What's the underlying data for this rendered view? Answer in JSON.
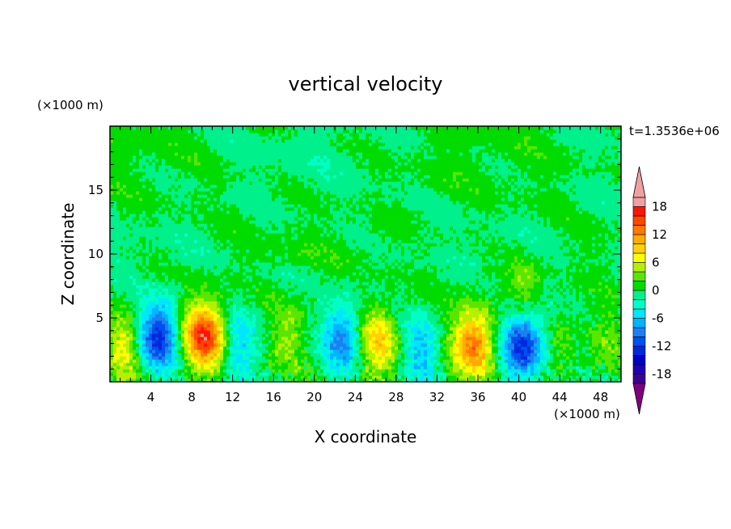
{
  "chart_data": {
    "type": "heatmap",
    "title": "vertical velocity",
    "xlabel": "X coordinate",
    "ylabel": "Z coordinate",
    "x_unit": "(×1000 m)",
    "y_unit": "(×1000 m)",
    "time_label": "t=1.3536e+06",
    "xlim": [
      0,
      50
    ],
    "ylim": [
      0,
      20
    ],
    "x_ticks": [
      4,
      8,
      12,
      16,
      20,
      24,
      28,
      32,
      36,
      40,
      44,
      48
    ],
    "y_ticks": [
      5,
      10,
      15
    ],
    "colorbar": {
      "levels": [
        -20,
        -18,
        -16,
        -14,
        -12,
        -10,
        -8,
        -6,
        -4,
        -2,
        0,
        2,
        4,
        6,
        8,
        10,
        12,
        14,
        16,
        18,
        20
      ],
      "labels": [
        18,
        12,
        6,
        0,
        -6,
        -12,
        -18
      ],
      "colors": [
        "#7f007f",
        "#3c0096",
        "#1e00b4",
        "#0000c8",
        "#0028dc",
        "#0050f0",
        "#1e7ff0",
        "#00b4ff",
        "#00e6ff",
        "#00ffc8",
        "#00f08c",
        "#00dc00",
        "#5ae600",
        "#b4f000",
        "#ffff00",
        "#ffd200",
        "#ffaa00",
        "#ff7800",
        "#ff4600",
        "#ff1400",
        "#f0a0a0"
      ]
    },
    "features": [
      {
        "x": 1.5,
        "z": 2.8,
        "w": 7
      },
      {
        "x": 4.8,
        "z": 3.6,
        "w": -13
      },
      {
        "x": 9.2,
        "z": 3.6,
        "w": 16
      },
      {
        "x": 12.6,
        "z": 3.0,
        "w": -6
      },
      {
        "x": 17.5,
        "z": 3.6,
        "w": 4
      },
      {
        "x": 22.8,
        "z": 3.5,
        "w": -9
      },
      {
        "x": 26.2,
        "z": 3.2,
        "w": 9
      },
      {
        "x": 30.4,
        "z": 2.6,
        "w": -6
      },
      {
        "x": 35.6,
        "z": 3.0,
        "w": 13
      },
      {
        "x": 40.4,
        "z": 3.0,
        "w": -13
      },
      {
        "x": 44.2,
        "z": 3.0,
        "w": 2
      },
      {
        "x": 48.4,
        "z": 3.0,
        "w": 3
      },
      {
        "x": 40.5,
        "z": 7.2,
        "w": 4
      }
    ]
  }
}
